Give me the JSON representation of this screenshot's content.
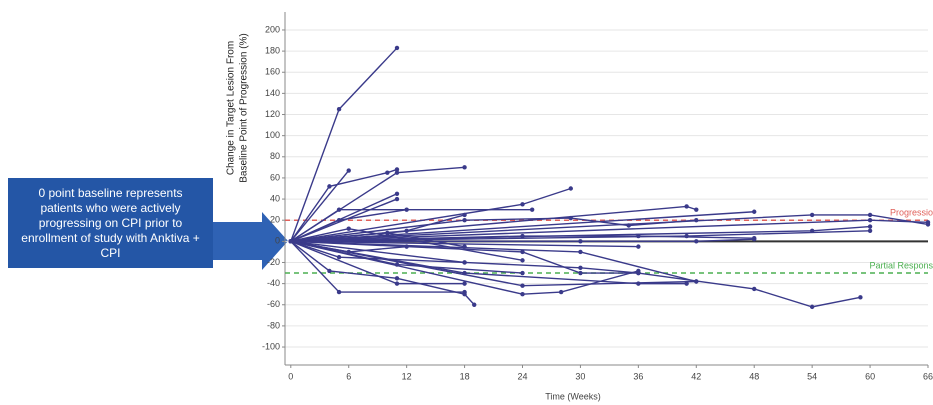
{
  "chart_data": {
    "type": "spider",
    "ylabel": [
      "Change in Target Lesion From",
      "Baseline Point of Progression (%)"
    ],
    "xlabel": "Time (Weeks)",
    "annotation": "0 point baseline represents patients who were actively progressing on CPI prior to enrollment of study with Anktiva + CPI",
    "color": "#3a3a8a",
    "xlim": [
      -0.6,
      66
    ],
    "xticks": [
      0,
      6,
      12,
      18,
      24,
      30,
      36,
      42,
      48,
      54,
      60,
      66
    ],
    "ylim": [
      -117,
      217
    ],
    "yticks": [
      -100,
      -80,
      -60,
      -40,
      -20,
      0,
      20,
      40,
      60,
      80,
      100,
      120,
      140,
      160,
      180,
      200
    ],
    "grid": true,
    "reference_lines": [
      {
        "label": "Progression",
        "value": 20,
        "color": "#e0605a"
      },
      {
        "label": "Partial Response",
        "value": -30,
        "color": "#4caf50"
      }
    ],
    "series": [
      {
        "x": [
          0,
          5,
          11
        ],
        "values": [
          0,
          125,
          183
        ]
      },
      {
        "x": [
          0,
          6
        ],
        "values": [
          0,
          67
        ]
      },
      {
        "x": [
          0,
          4,
          10,
          11
        ],
        "values": [
          0,
          52,
          65,
          68
        ]
      },
      {
        "x": [
          0,
          11,
          18
        ],
        "values": [
          0,
          65,
          70
        ]
      },
      {
        "x": [
          0,
          11
        ],
        "values": [
          0,
          45
        ]
      },
      {
        "x": [
          0,
          11
        ],
        "values": [
          0,
          40
        ]
      },
      {
        "x": [
          0,
          24,
          29
        ],
        "values": [
          0,
          35,
          50
        ]
      },
      {
        "x": [
          0,
          5,
          25
        ],
        "values": [
          0,
          30,
          30
        ]
      },
      {
        "x": [
          0,
          41,
          42
        ],
        "values": [
          0,
          33,
          30
        ]
      },
      {
        "x": [
          0,
          48
        ],
        "values": [
          0,
          28
        ]
      },
      {
        "x": [
          0,
          54,
          60,
          66
        ],
        "values": [
          0,
          25,
          25,
          16
        ]
      },
      {
        "x": [
          0,
          5,
          12
        ],
        "values": [
          0,
          20,
          30
        ]
      },
      {
        "x": [
          0,
          18,
          29,
          35,
          42
        ],
        "values": [
          0,
          20,
          22,
          15,
          20
        ]
      },
      {
        "x": [
          0,
          60,
          66
        ],
        "values": [
          0,
          20,
          18
        ]
      },
      {
        "x": [
          0,
          54,
          60
        ],
        "values": [
          0,
          10,
          14
        ]
      },
      {
        "x": [
          0,
          12,
          18
        ],
        "values": [
          0,
          10,
          25
        ]
      },
      {
        "x": [
          0,
          24,
          36,
          48
        ],
        "values": [
          0,
          5,
          5,
          3
        ]
      },
      {
        "x": [
          0,
          30,
          42,
          48
        ],
        "values": [
          0,
          0,
          0,
          2
        ]
      },
      {
        "x": [
          0,
          6,
          12
        ],
        "values": [
          0,
          -10,
          -5
        ]
      },
      {
        "x": [
          0,
          5,
          18
        ],
        "values": [
          0,
          -15,
          -20
        ]
      },
      {
        "x": [
          0,
          5,
          18
        ],
        "values": [
          0,
          -48,
          -48
        ]
      },
      {
        "x": [
          0,
          11,
          18
        ],
        "values": [
          0,
          -40,
          -40
        ]
      },
      {
        "x": [
          0,
          4,
          11,
          18,
          19
        ],
        "values": [
          0,
          -28,
          -35,
          -50,
          -60
        ]
      },
      {
        "x": [
          0,
          18,
          30,
          36,
          48,
          54,
          59
        ],
        "values": [
          0,
          -20,
          -25,
          -30,
          -45,
          -62,
          -53
        ]
      },
      {
        "x": [
          0,
          24,
          28,
          36
        ],
        "values": [
          0,
          -50,
          -48,
          -28
        ]
      },
      {
        "x": [
          0,
          24,
          42
        ],
        "values": [
          0,
          -42,
          -38
        ]
      },
      {
        "x": [
          0,
          18,
          36,
          41
        ],
        "values": [
          0,
          -30,
          -40,
          -40
        ]
      },
      {
        "x": [
          0,
          11,
          24
        ],
        "values": [
          0,
          -22,
          -30
        ]
      },
      {
        "x": [
          0,
          30,
          42
        ],
        "values": [
          0,
          -10,
          -38
        ]
      },
      {
        "x": [
          0,
          24,
          30,
          36
        ],
        "values": [
          0,
          -10,
          -30,
          -30
        ]
      },
      {
        "x": [
          0,
          10,
          18
        ],
        "values": [
          0,
          8,
          -5
        ]
      },
      {
        "x": [
          0,
          6,
          24
        ],
        "values": [
          0,
          12,
          -18
        ]
      },
      {
        "x": [
          0,
          41,
          60
        ],
        "values": [
          0,
          5,
          10
        ]
      },
      {
        "x": [
          0,
          36
        ],
        "values": [
          0,
          -5
        ]
      }
    ]
  }
}
